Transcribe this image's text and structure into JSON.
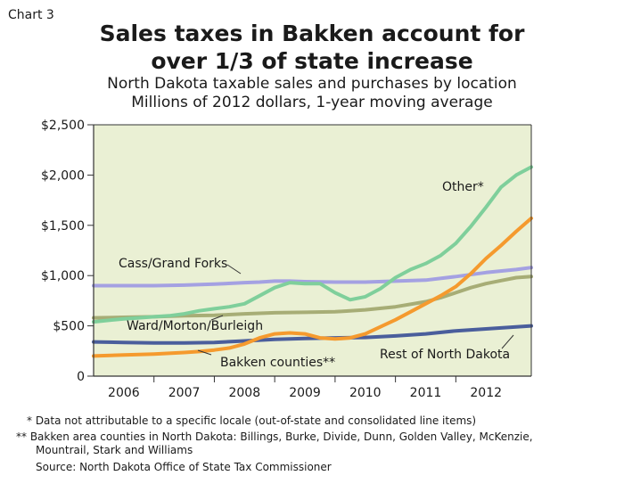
{
  "chart_label": "Chart 3",
  "colors": {
    "plot_bg": "#eaf0d4",
    "other": "#7fcf9b",
    "cass": "#a4a1e2",
    "ward": "#a7ad76",
    "bakken": "#f59a2e",
    "rest": "#4a5e9c"
  },
  "chart_data": {
    "type": "line",
    "title": [
      "Sales taxes in Bakken account for",
      "over 1/3 of state increase"
    ],
    "subtitle": [
      "North Dakota taxable sales and purchases by location",
      "Millions of 2012 dollars, 1-year moving average"
    ],
    "xlabel": "",
    "ylabel": "",
    "ylim": [
      0,
      2500
    ],
    "xlim": [
      2005.5,
      2012.75
    ],
    "y_ticks": [
      0,
      500,
      1000,
      1500,
      2000,
      2500
    ],
    "y_tick_labels": [
      "0",
      "$500",
      "$1,000",
      "$1,500",
      "$2,000",
      "$2,500"
    ],
    "x_tick_labels": [
      "2006",
      "2007",
      "2008",
      "2009",
      "2010",
      "2011",
      "2012"
    ],
    "x_tick_positions": [
      2006,
      2007,
      2008,
      2009,
      2010,
      2011,
      2012
    ],
    "grid": false,
    "series": [
      {
        "name": "Other*",
        "color_key": "other",
        "x": [
          2005.5,
          2006.0,
          2006.25,
          2006.5,
          2006.75,
          2007.0,
          2007.25,
          2007.5,
          2007.75,
          2008.0,
          2008.25,
          2008.5,
          2008.75,
          2009.0,
          2009.25,
          2009.5,
          2009.75,
          2010.0,
          2010.25,
          2010.5,
          2010.75,
          2011.0,
          2011.25,
          2011.5,
          2011.75,
          2012.0,
          2012.25,
          2012.5,
          2012.75
        ],
        "values": [
          540,
          570,
          580,
          590,
          600,
          620,
          650,
          670,
          690,
          720,
          800,
          880,
          930,
          920,
          920,
          830,
          760,
          790,
          870,
          980,
          1060,
          1120,
          1200,
          1320,
          1490,
          1680,
          1880,
          2000,
          2080
        ]
      },
      {
        "name": "Cass/Grand Forks",
        "color_key": "cass",
        "x": [
          2005.5,
          2006.0,
          2006.5,
          2007.0,
          2007.5,
          2008.0,
          2008.25,
          2008.5,
          2008.75,
          2009.0,
          2009.5,
          2010.0,
          2010.5,
          2011.0,
          2011.5,
          2012.0,
          2012.5,
          2012.75
        ],
        "values": [
          900,
          900,
          900,
          905,
          915,
          930,
          935,
          945,
          945,
          940,
          935,
          935,
          945,
          955,
          990,
          1030,
          1060,
          1080
        ]
      },
      {
        "name": "Ward/Morton/Burleigh",
        "color_key": "ward",
        "x": [
          2005.5,
          2006.0,
          2006.5,
          2007.0,
          2007.5,
          2008.0,
          2008.5,
          2009.0,
          2009.5,
          2010.0,
          2010.5,
          2011.0,
          2011.25,
          2011.5,
          2011.75,
          2012.0,
          2012.25,
          2012.5,
          2012.75
        ],
        "values": [
          580,
          585,
          590,
          600,
          605,
          620,
          630,
          635,
          640,
          660,
          690,
          740,
          780,
          830,
          880,
          920,
          950,
          980,
          990
        ]
      },
      {
        "name": "Bakken counties**",
        "color_key": "bakken",
        "x": [
          2005.5,
          2006.0,
          2006.5,
          2007.0,
          2007.25,
          2007.5,
          2007.75,
          2008.0,
          2008.25,
          2008.5,
          2008.75,
          2009.0,
          2009.25,
          2009.5,
          2009.75,
          2010.0,
          2010.25,
          2010.5,
          2010.75,
          2011.0,
          2011.25,
          2011.5,
          2011.75,
          2012.0,
          2012.25,
          2012.5,
          2012.75
        ],
        "values": [
          200,
          210,
          220,
          235,
          245,
          260,
          280,
          320,
          380,
          420,
          430,
          420,
          380,
          370,
          380,
          420,
          490,
          560,
          640,
          720,
          800,
          890,
          1020,
          1170,
          1300,
          1440,
          1570
        ]
      },
      {
        "name": "Rest of North Dakota",
        "color_key": "rest",
        "x": [
          2005.5,
          2006.0,
          2006.5,
          2007.0,
          2007.5,
          2008.0,
          2008.5,
          2009.0,
          2009.5,
          2010.0,
          2010.5,
          2011.0,
          2011.5,
          2012.0,
          2012.5,
          2012.75
        ],
        "values": [
          340,
          335,
          330,
          330,
          335,
          350,
          365,
          375,
          380,
          385,
          400,
          420,
          450,
          470,
          490,
          500
        ]
      }
    ],
    "annotations": [
      {
        "text": "Other*",
        "series": "other"
      },
      {
        "text": "Cass/Grand Forks",
        "series": "cass"
      },
      {
        "text": "Ward/Morton/Burleigh",
        "series": "ward"
      },
      {
        "text": "Bakken counties**",
        "series": "bakken"
      },
      {
        "text": "Rest of North Dakota",
        "series": "rest"
      }
    ]
  },
  "footnotes": {
    "other": "* Data not attributable to a specific locale (out-of-state and consolidated line items)",
    "bakken_1": "** Bakken area counties in North Dakota: Billings, Burke, Divide, Dunn, Golden Valley, McKenzie,",
    "bakken_2": "Mountrail, Stark and Williams",
    "source": "Source: North Dakota Office of State Tax Commissioner"
  }
}
